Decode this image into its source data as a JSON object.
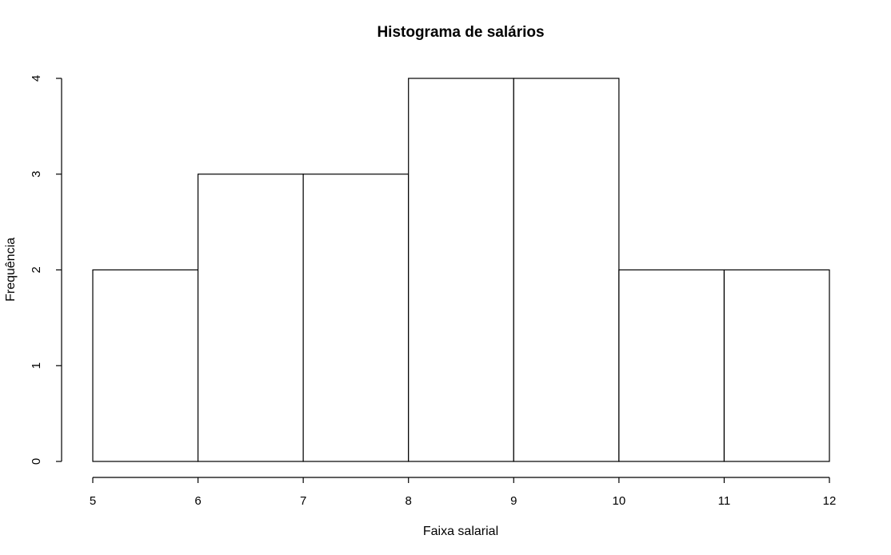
{
  "chart_data": {
    "type": "bar",
    "title": "Histograma de salários",
    "xlabel": "Faixa salarial",
    "ylabel": "Frequência",
    "bins": [
      {
        "start": 5,
        "end": 6,
        "count": 2
      },
      {
        "start": 6,
        "end": 7,
        "count": 3
      },
      {
        "start": 7,
        "end": 8,
        "count": 3
      },
      {
        "start": 8,
        "end": 9,
        "count": 4
      },
      {
        "start": 9,
        "end": 10,
        "count": 4
      },
      {
        "start": 10,
        "end": 11,
        "count": 2
      },
      {
        "start": 11,
        "end": 12,
        "count": 2
      }
    ],
    "xlim": [
      5,
      12
    ],
    "ylim": [
      0,
      4
    ],
    "x_ticks": [
      "5",
      "6",
      "7",
      "8",
      "9",
      "10",
      "11",
      "12"
    ],
    "y_ticks": [
      "0",
      "1",
      "2",
      "3",
      "4"
    ],
    "grid": false,
    "legend": "none",
    "colors": {
      "bar_fill": "#ffffff",
      "bar_stroke": "#000000",
      "axis": "#000000",
      "background": "#ffffff"
    }
  }
}
